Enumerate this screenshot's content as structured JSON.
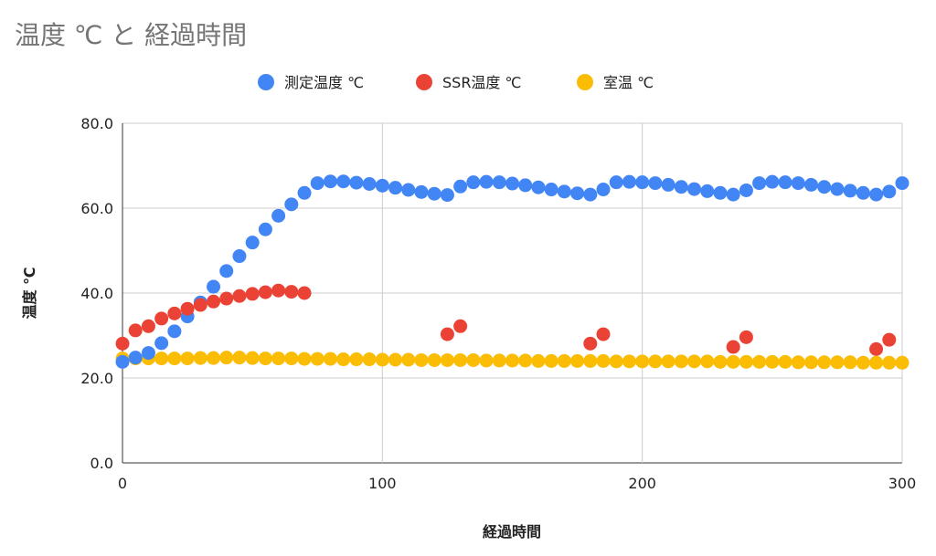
{
  "chart_data": {
    "type": "scatter",
    "title": "温度 ℃ と 経過時間",
    "xlabel": "経過時間",
    "ylabel": "温度 ℃",
    "xlim": [
      0,
      300
    ],
    "ylim": [
      0,
      80
    ],
    "x_ticks": [
      0,
      100,
      200,
      300
    ],
    "y_ticks": [
      0,
      20,
      40,
      60,
      80
    ],
    "x_tick_labels": [
      "0",
      "100",
      "200",
      "300"
    ],
    "y_tick_labels": [
      "0.0",
      "20.0",
      "40.0",
      "60.0",
      "80.0"
    ],
    "grid": true,
    "legend_position": "top",
    "series": [
      {
        "name": "測定温度 ℃",
        "color": "#4285f4",
        "points": [
          [
            0,
            23.8
          ],
          [
            5,
            24.8
          ],
          [
            10,
            25.9
          ],
          [
            15,
            28.2
          ],
          [
            20,
            31.0
          ],
          [
            25,
            34.5
          ],
          [
            30,
            37.8
          ],
          [
            35,
            41.5
          ],
          [
            40,
            45.2
          ],
          [
            45,
            48.7
          ],
          [
            50,
            51.9
          ],
          [
            55,
            55.0
          ],
          [
            60,
            58.2
          ],
          [
            65,
            60.9
          ],
          [
            70,
            63.6
          ],
          [
            75,
            65.9
          ],
          [
            80,
            66.3
          ],
          [
            85,
            66.3
          ],
          [
            90,
            66.0
          ],
          [
            95,
            65.7
          ],
          [
            100,
            65.3
          ],
          [
            105,
            64.8
          ],
          [
            110,
            64.3
          ],
          [
            115,
            63.8
          ],
          [
            120,
            63.4
          ],
          [
            125,
            63.1
          ],
          [
            130,
            65.1
          ],
          [
            135,
            66.1
          ],
          [
            140,
            66.2
          ],
          [
            145,
            66.1
          ],
          [
            150,
            65.8
          ],
          [
            155,
            65.4
          ],
          [
            160,
            64.9
          ],
          [
            165,
            64.4
          ],
          [
            170,
            63.9
          ],
          [
            175,
            63.5
          ],
          [
            180,
            63.2
          ],
          [
            185,
            64.4
          ],
          [
            190,
            66.1
          ],
          [
            195,
            66.2
          ],
          [
            200,
            66.1
          ],
          [
            205,
            65.9
          ],
          [
            210,
            65.5
          ],
          [
            215,
            65.0
          ],
          [
            220,
            64.5
          ],
          [
            225,
            64.0
          ],
          [
            230,
            63.6
          ],
          [
            235,
            63.2
          ],
          [
            240,
            64.2
          ],
          [
            245,
            65.9
          ],
          [
            250,
            66.2
          ],
          [
            255,
            66.1
          ],
          [
            260,
            65.9
          ],
          [
            265,
            65.5
          ],
          [
            270,
            65.0
          ],
          [
            275,
            64.5
          ],
          [
            280,
            64.1
          ],
          [
            285,
            63.6
          ],
          [
            290,
            63.2
          ],
          [
            295,
            63.9
          ],
          [
            300,
            65.9
          ]
        ]
      },
      {
        "name": "SSR温度 ℃",
        "color": "#ea4335",
        "points": [
          [
            0,
            28.1
          ],
          [
            5,
            31.2
          ],
          [
            10,
            32.2
          ],
          [
            15,
            34.0
          ],
          [
            20,
            35.2
          ],
          [
            25,
            36.3
          ],
          [
            30,
            37.2
          ],
          [
            35,
            38.0
          ],
          [
            40,
            38.7
          ],
          [
            45,
            39.3
          ],
          [
            50,
            39.8
          ],
          [
            55,
            40.2
          ],
          [
            60,
            40.6
          ],
          [
            65,
            40.3
          ],
          [
            70,
            40.0
          ],
          [
            125,
            30.3
          ],
          [
            130,
            32.2
          ],
          [
            180,
            28.1
          ],
          [
            185,
            30.3
          ],
          [
            235,
            27.3
          ],
          [
            240,
            29.6
          ],
          [
            290,
            26.8
          ],
          [
            295,
            29.0
          ]
        ]
      },
      {
        "name": "室温 ℃",
        "color": "#fbbc04",
        "points": [
          [
            0,
            24.6
          ],
          [
            5,
            24.6
          ],
          [
            10,
            24.6
          ],
          [
            15,
            24.6
          ],
          [
            20,
            24.6
          ],
          [
            25,
            24.6
          ],
          [
            30,
            24.7
          ],
          [
            35,
            24.7
          ],
          [
            40,
            24.8
          ],
          [
            45,
            24.8
          ],
          [
            50,
            24.7
          ],
          [
            55,
            24.6
          ],
          [
            60,
            24.6
          ],
          [
            65,
            24.6
          ],
          [
            70,
            24.5
          ],
          [
            75,
            24.5
          ],
          [
            80,
            24.5
          ],
          [
            85,
            24.4
          ],
          [
            90,
            24.4
          ],
          [
            95,
            24.4
          ],
          [
            100,
            24.3
          ],
          [
            105,
            24.3
          ],
          [
            110,
            24.3
          ],
          [
            115,
            24.2
          ],
          [
            120,
            24.2
          ],
          [
            125,
            24.2
          ],
          [
            130,
            24.2
          ],
          [
            135,
            24.2
          ],
          [
            140,
            24.1
          ],
          [
            145,
            24.1
          ],
          [
            150,
            24.1
          ],
          [
            155,
            24.1
          ],
          [
            160,
            24.0
          ],
          [
            165,
            24.0
          ],
          [
            170,
            24.0
          ],
          [
            175,
            24.0
          ],
          [
            180,
            24.0
          ],
          [
            185,
            24.0
          ],
          [
            190,
            23.9
          ],
          [
            195,
            23.9
          ],
          [
            200,
            23.9
          ],
          [
            205,
            23.9
          ],
          [
            210,
            23.9
          ],
          [
            215,
            23.9
          ],
          [
            220,
            23.9
          ],
          [
            225,
            23.9
          ],
          [
            230,
            23.8
          ],
          [
            235,
            23.8
          ],
          [
            240,
            23.8
          ],
          [
            245,
            23.8
          ],
          [
            250,
            23.8
          ],
          [
            255,
            23.8
          ],
          [
            260,
            23.7
          ],
          [
            265,
            23.7
          ],
          [
            270,
            23.7
          ],
          [
            275,
            23.7
          ],
          [
            280,
            23.7
          ],
          [
            285,
            23.6
          ],
          [
            290,
            23.6
          ],
          [
            295,
            23.6
          ],
          [
            300,
            23.6
          ]
        ]
      }
    ]
  }
}
